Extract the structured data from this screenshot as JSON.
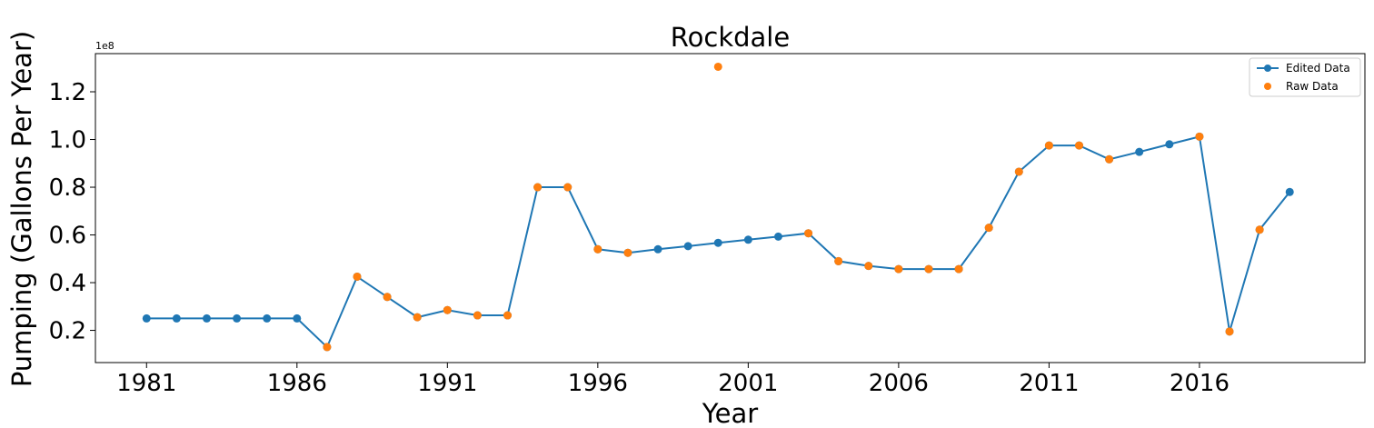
{
  "chart_data": {
    "type": "line",
    "title": "Rockdale",
    "xlabel": "Year",
    "ylabel": "Pumping (Gallons Per Year)",
    "y_offset_label": "1e8",
    "xlim": [
      1979.3,
      2021.5
    ],
    "ylim": [
      0.065,
      1.36
    ],
    "y_scale_factor": 100000000,
    "x_ticks": [
      1981,
      1986,
      1991,
      1996,
      2001,
      2006,
      2011,
      2016
    ],
    "y_ticks": [
      0.2,
      0.4,
      0.6,
      0.8,
      1.0,
      1.2
    ],
    "y_tick_labels": [
      "0.2",
      "0.4",
      "0.6",
      "0.8",
      "1.0",
      "1.2"
    ],
    "grid": false,
    "legend_position": "top-right",
    "series": [
      {
        "name": "Edited Data",
        "style": "line-with-markers",
        "color": "#1f77b4",
        "x": [
          1981,
          1982,
          1983,
          1984,
          1985,
          1986,
          1987,
          1988,
          1989,
          1990,
          1991,
          1992,
          1993,
          1994,
          1995,
          1996,
          1997,
          1998,
          1999,
          2000,
          2001,
          2002,
          2003,
          2004,
          2005,
          2006,
          2007,
          2008,
          2009,
          2010,
          2011,
          2012,
          2013,
          2014,
          2015,
          2016,
          2017,
          2018,
          2019
        ],
        "y": [
          0.25,
          0.25,
          0.25,
          0.25,
          0.25,
          0.25,
          0.13,
          0.425,
          0.34,
          0.255,
          0.285,
          0.263,
          0.263,
          0.8,
          0.8,
          0.54,
          0.525,
          0.54,
          0.553,
          0.567,
          0.58,
          0.593,
          0.607,
          0.49,
          0.47,
          0.457,
          0.457,
          0.457,
          0.63,
          0.865,
          0.975,
          0.975,
          0.917,
          0.948,
          0.98,
          1.012,
          0.195,
          0.622,
          0.78
        ]
      },
      {
        "name": "Raw Data",
        "style": "markers",
        "color": "#ff7f0e",
        "x": [
          1987,
          1988,
          1989,
          1990,
          1991,
          1992,
          1993,
          1994,
          1995,
          1996,
          1997,
          2000,
          2003,
          2004,
          2005,
          2006,
          2007,
          2008,
          2009,
          2010,
          2011,
          2012,
          2013,
          2016,
          2017,
          2018
        ],
        "y": [
          0.13,
          0.425,
          0.34,
          0.255,
          0.285,
          0.263,
          0.263,
          0.8,
          0.8,
          0.54,
          0.525,
          1.305,
          0.607,
          0.49,
          0.47,
          0.457,
          0.457,
          0.457,
          0.63,
          0.865,
          0.975,
          0.975,
          0.917,
          1.012,
          0.195,
          0.622
        ]
      }
    ]
  }
}
